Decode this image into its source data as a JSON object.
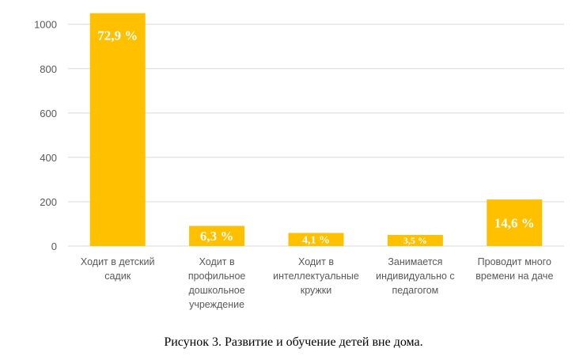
{
  "chart_data": {
    "type": "bar",
    "categories": [
      [
        "Ходит в детский",
        "садик"
      ],
      [
        "Ходит в",
        "профильное",
        "дошкольное",
        "учреждение"
      ],
      [
        "Ходит в",
        "интеллектуальные",
        "кружки"
      ],
      [
        "Занимается",
        "индивидуально с",
        "педагогом"
      ],
      [
        "Проводит много",
        "времени на даче"
      ]
    ],
    "values": [
      1050,
      91,
      59,
      50,
      210
    ],
    "data_labels": [
      "72,9 %",
      "6,3 %",
      "4,1 %",
      "3,5 %",
      "14,6 %"
    ],
    "yticks": [
      0,
      200,
      400,
      600,
      800,
      1000
    ],
    "ylim": [
      0,
      1050
    ],
    "grid": true,
    "bar_color": "#FFC000",
    "grid_color": "#D9D9D9"
  },
  "caption": "Рисунок 3. Развитие и обучение детей вне дома."
}
